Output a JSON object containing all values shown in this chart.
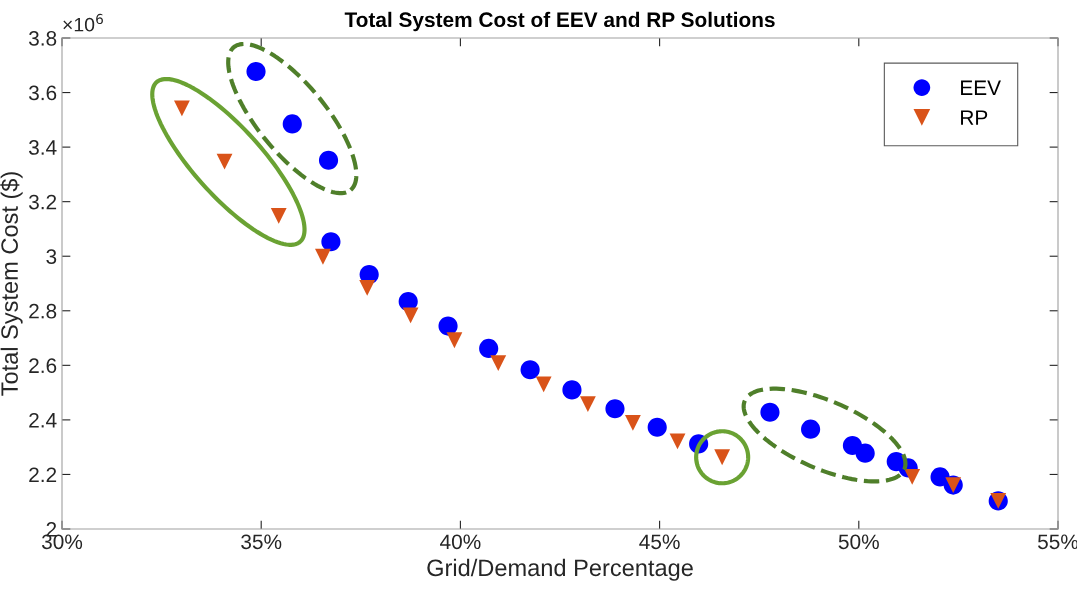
{
  "chart_data": {
    "type": "scatter",
    "title": "Total System Cost of EEV and RP Solutions",
    "xlabel": "Grid/Demand Percentage",
    "ylabel": "Total System Cost ($)",
    "series": [
      {
        "name": "EEV",
        "color": "#0000ff",
        "marker": "circle",
        "x": [
          34.87,
          35.78,
          36.69,
          36.75,
          37.71,
          38.69,
          39.69,
          40.71,
          41.75,
          42.8,
          43.88,
          44.94,
          45.98,
          47.77,
          48.79,
          49.84,
          50.16,
          50.94,
          51.24,
          52.04,
          52.37,
          53.5
        ],
        "values": [
          3.677,
          3.485,
          3.352,
          3.053,
          2.933,
          2.834,
          2.744,
          2.662,
          2.584,
          2.51,
          2.441,
          2.373,
          2.312,
          2.428,
          2.366,
          2.306,
          2.278,
          2.247,
          2.224,
          2.191,
          2.161,
          2.103
        ]
      },
      {
        "name": "RP",
        "color": "#d95319",
        "marker": "triangle",
        "x": [
          33.01,
          34.08,
          35.44,
          36.55,
          37.66,
          38.75,
          39.85,
          40.95,
          42.09,
          43.2,
          44.33,
          45.45,
          46.57,
          51.34,
          52.37,
          53.5
        ],
        "values": [
          3.542,
          3.347,
          3.148,
          2.998,
          2.884,
          2.783,
          2.692,
          2.608,
          2.53,
          2.458,
          2.389,
          2.321,
          2.263,
          2.191,
          2.161,
          2.103
        ]
      }
    ],
    "xlim": [
      30,
      55
    ],
    "xticks": [
      {
        "value": 30,
        "label": "30%"
      },
      {
        "value": 35,
        "label": "35%"
      },
      {
        "value": 40,
        "label": "40%"
      },
      {
        "value": 45,
        "label": "45%"
      },
      {
        "value": 50,
        "label": "50%"
      },
      {
        "value": 55,
        "label": "55%"
      }
    ],
    "ylim": [
      2,
      3.8
    ],
    "yticks": [
      2,
      2.2,
      2.4,
      2.6,
      2.8,
      3,
      3.2,
      3.4,
      3.6,
      3.8
    ],
    "annotations": [
      "×10$^{6}$"
    ],
    "grid": false,
    "legend": "top right"
  }
}
